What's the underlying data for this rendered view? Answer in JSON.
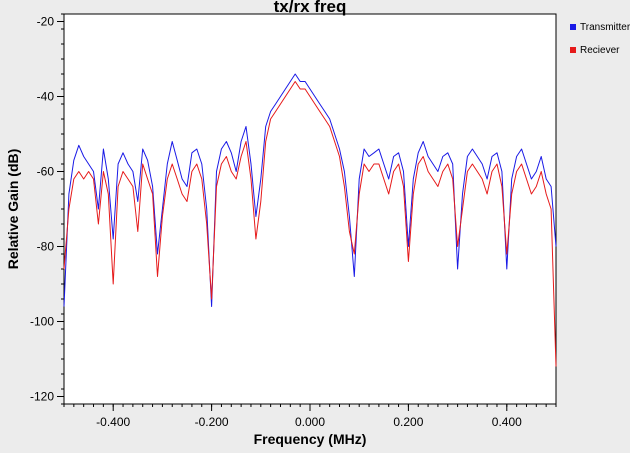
{
  "chart_data": {
    "type": "line",
    "title": "tx/rx freq",
    "xlabel": "Frequency (MHz)",
    "ylabel": "Relative Gain (dB)",
    "xlim": [
      -0.5,
      0.5
    ],
    "ylim": [
      -122,
      -18
    ],
    "x_ticks": [
      -0.4,
      -0.2,
      0.0,
      0.2,
      0.4
    ],
    "x_tick_labels": [
      "-0.400",
      "-0.200",
      "0.000",
      "0.200",
      "0.400"
    ],
    "y_ticks": [
      -20,
      -40,
      -60,
      -80,
      -100,
      -120
    ],
    "y_tick_labels": [
      "-20",
      "-40",
      "-60",
      "-80",
      "-100",
      "-120"
    ],
    "grid": false,
    "legend_position": "top-right outside",
    "series": [
      {
        "name": "Transmitter",
        "color": "#1a1ae6",
        "x": [
          -0.5,
          -0.49,
          -0.48,
          -0.47,
          -0.46,
          -0.45,
          -0.44,
          -0.43,
          -0.42,
          -0.41,
          -0.4,
          -0.39,
          -0.38,
          -0.37,
          -0.36,
          -0.35,
          -0.34,
          -0.33,
          -0.32,
          -0.31,
          -0.3,
          -0.29,
          -0.28,
          -0.27,
          -0.26,
          -0.25,
          -0.24,
          -0.23,
          -0.22,
          -0.21,
          -0.2,
          -0.19,
          -0.18,
          -0.17,
          -0.16,
          -0.15,
          -0.14,
          -0.13,
          -0.12,
          -0.11,
          -0.1,
          -0.09,
          -0.08,
          -0.07,
          -0.06,
          -0.05,
          -0.04,
          -0.03,
          -0.02,
          -0.01,
          0.0,
          0.01,
          0.02,
          0.03,
          0.04,
          0.05,
          0.06,
          0.07,
          0.08,
          0.09,
          0.1,
          0.11,
          0.12,
          0.13,
          0.14,
          0.15,
          0.16,
          0.17,
          0.18,
          0.19,
          0.2,
          0.21,
          0.22,
          0.23,
          0.24,
          0.25,
          0.26,
          0.27,
          0.28,
          0.29,
          0.3,
          0.31,
          0.32,
          0.33,
          0.34,
          0.35,
          0.36,
          0.37,
          0.38,
          0.39,
          0.4,
          0.41,
          0.42,
          0.43,
          0.44,
          0.45,
          0.46,
          0.47,
          0.48,
          0.49,
          0.5
        ],
        "values": [
          -96,
          -66,
          -57,
          -53,
          -56,
          -58,
          -60,
          -70,
          -54,
          -62,
          -78,
          -58,
          -55,
          -58,
          -60,
          -68,
          -54,
          -57,
          -64,
          -82,
          -70,
          -58,
          -52,
          -57,
          -62,
          -64,
          -55,
          -54,
          -58,
          -70,
          -96,
          -60,
          -54,
          -52,
          -55,
          -60,
          -52,
          -48,
          -58,
          -72,
          -62,
          -48,
          -44,
          -42,
          -40,
          -38,
          -36,
          -34,
          -36,
          -36,
          -38,
          -40,
          -42,
          -44,
          -46,
          -50,
          -54,
          -60,
          -72,
          -88,
          -62,
          -54,
          -56,
          -55,
          -54,
          -58,
          -62,
          -56,
          -55,
          -60,
          -80,
          -62,
          -55,
          -52,
          -56,
          -58,
          -60,
          -56,
          -55,
          -58,
          -86,
          -66,
          -56,
          -54,
          -56,
          -58,
          -62,
          -56,
          -55,
          -60,
          -86,
          -62,
          -56,
          -54,
          -58,
          -62,
          -60,
          -56,
          -62,
          -64,
          -80
        ]
      },
      {
        "name": "Reciever",
        "color": "#e61a1a",
        "x": [
          -0.5,
          -0.49,
          -0.48,
          -0.47,
          -0.46,
          -0.45,
          -0.44,
          -0.43,
          -0.42,
          -0.41,
          -0.4,
          -0.39,
          -0.38,
          -0.37,
          -0.36,
          -0.35,
          -0.34,
          -0.33,
          -0.32,
          -0.31,
          -0.3,
          -0.29,
          -0.28,
          -0.27,
          -0.26,
          -0.25,
          -0.24,
          -0.23,
          -0.22,
          -0.21,
          -0.2,
          -0.19,
          -0.18,
          -0.17,
          -0.16,
          -0.15,
          -0.14,
          -0.13,
          -0.12,
          -0.11,
          -0.1,
          -0.09,
          -0.08,
          -0.07,
          -0.06,
          -0.05,
          -0.04,
          -0.03,
          -0.02,
          -0.01,
          0.0,
          0.01,
          0.02,
          0.03,
          0.04,
          0.05,
          0.06,
          0.07,
          0.08,
          0.09,
          0.1,
          0.11,
          0.12,
          0.13,
          0.14,
          0.15,
          0.16,
          0.17,
          0.18,
          0.19,
          0.2,
          0.21,
          0.22,
          0.23,
          0.24,
          0.25,
          0.26,
          0.27,
          0.28,
          0.29,
          0.3,
          0.31,
          0.32,
          0.33,
          0.34,
          0.35,
          0.36,
          0.37,
          0.38,
          0.39,
          0.4,
          0.41,
          0.42,
          0.43,
          0.44,
          0.45,
          0.46,
          0.47,
          0.48,
          0.49,
          0.5
        ],
        "values": [
          -86,
          -70,
          -62,
          -60,
          -62,
          -60,
          -62,
          -74,
          -60,
          -66,
          -90,
          -64,
          -60,
          -62,
          -64,
          -76,
          -58,
          -62,
          -66,
          -88,
          -72,
          -62,
          -58,
          -62,
          -66,
          -68,
          -60,
          -58,
          -62,
          -74,
          -94,
          -64,
          -58,
          -56,
          -60,
          -62,
          -56,
          -52,
          -62,
          -78,
          -68,
          -52,
          -46,
          -44,
          -42,
          -40,
          -38,
          -36,
          -38,
          -38,
          -40,
          -42,
          -44,
          -46,
          -48,
          -52,
          -56,
          -64,
          -76,
          -82,
          -66,
          -58,
          -60,
          -58,
          -58,
          -62,
          -66,
          -60,
          -58,
          -64,
          -84,
          -66,
          -58,
          -56,
          -60,
          -62,
          -64,
          -60,
          -58,
          -62,
          -80,
          -70,
          -60,
          -58,
          -60,
          -62,
          -66,
          -60,
          -58,
          -64,
          -82,
          -66,
          -60,
          -58,
          -62,
          -66,
          -64,
          -60,
          -66,
          -70,
          -112
        ]
      }
    ]
  }
}
